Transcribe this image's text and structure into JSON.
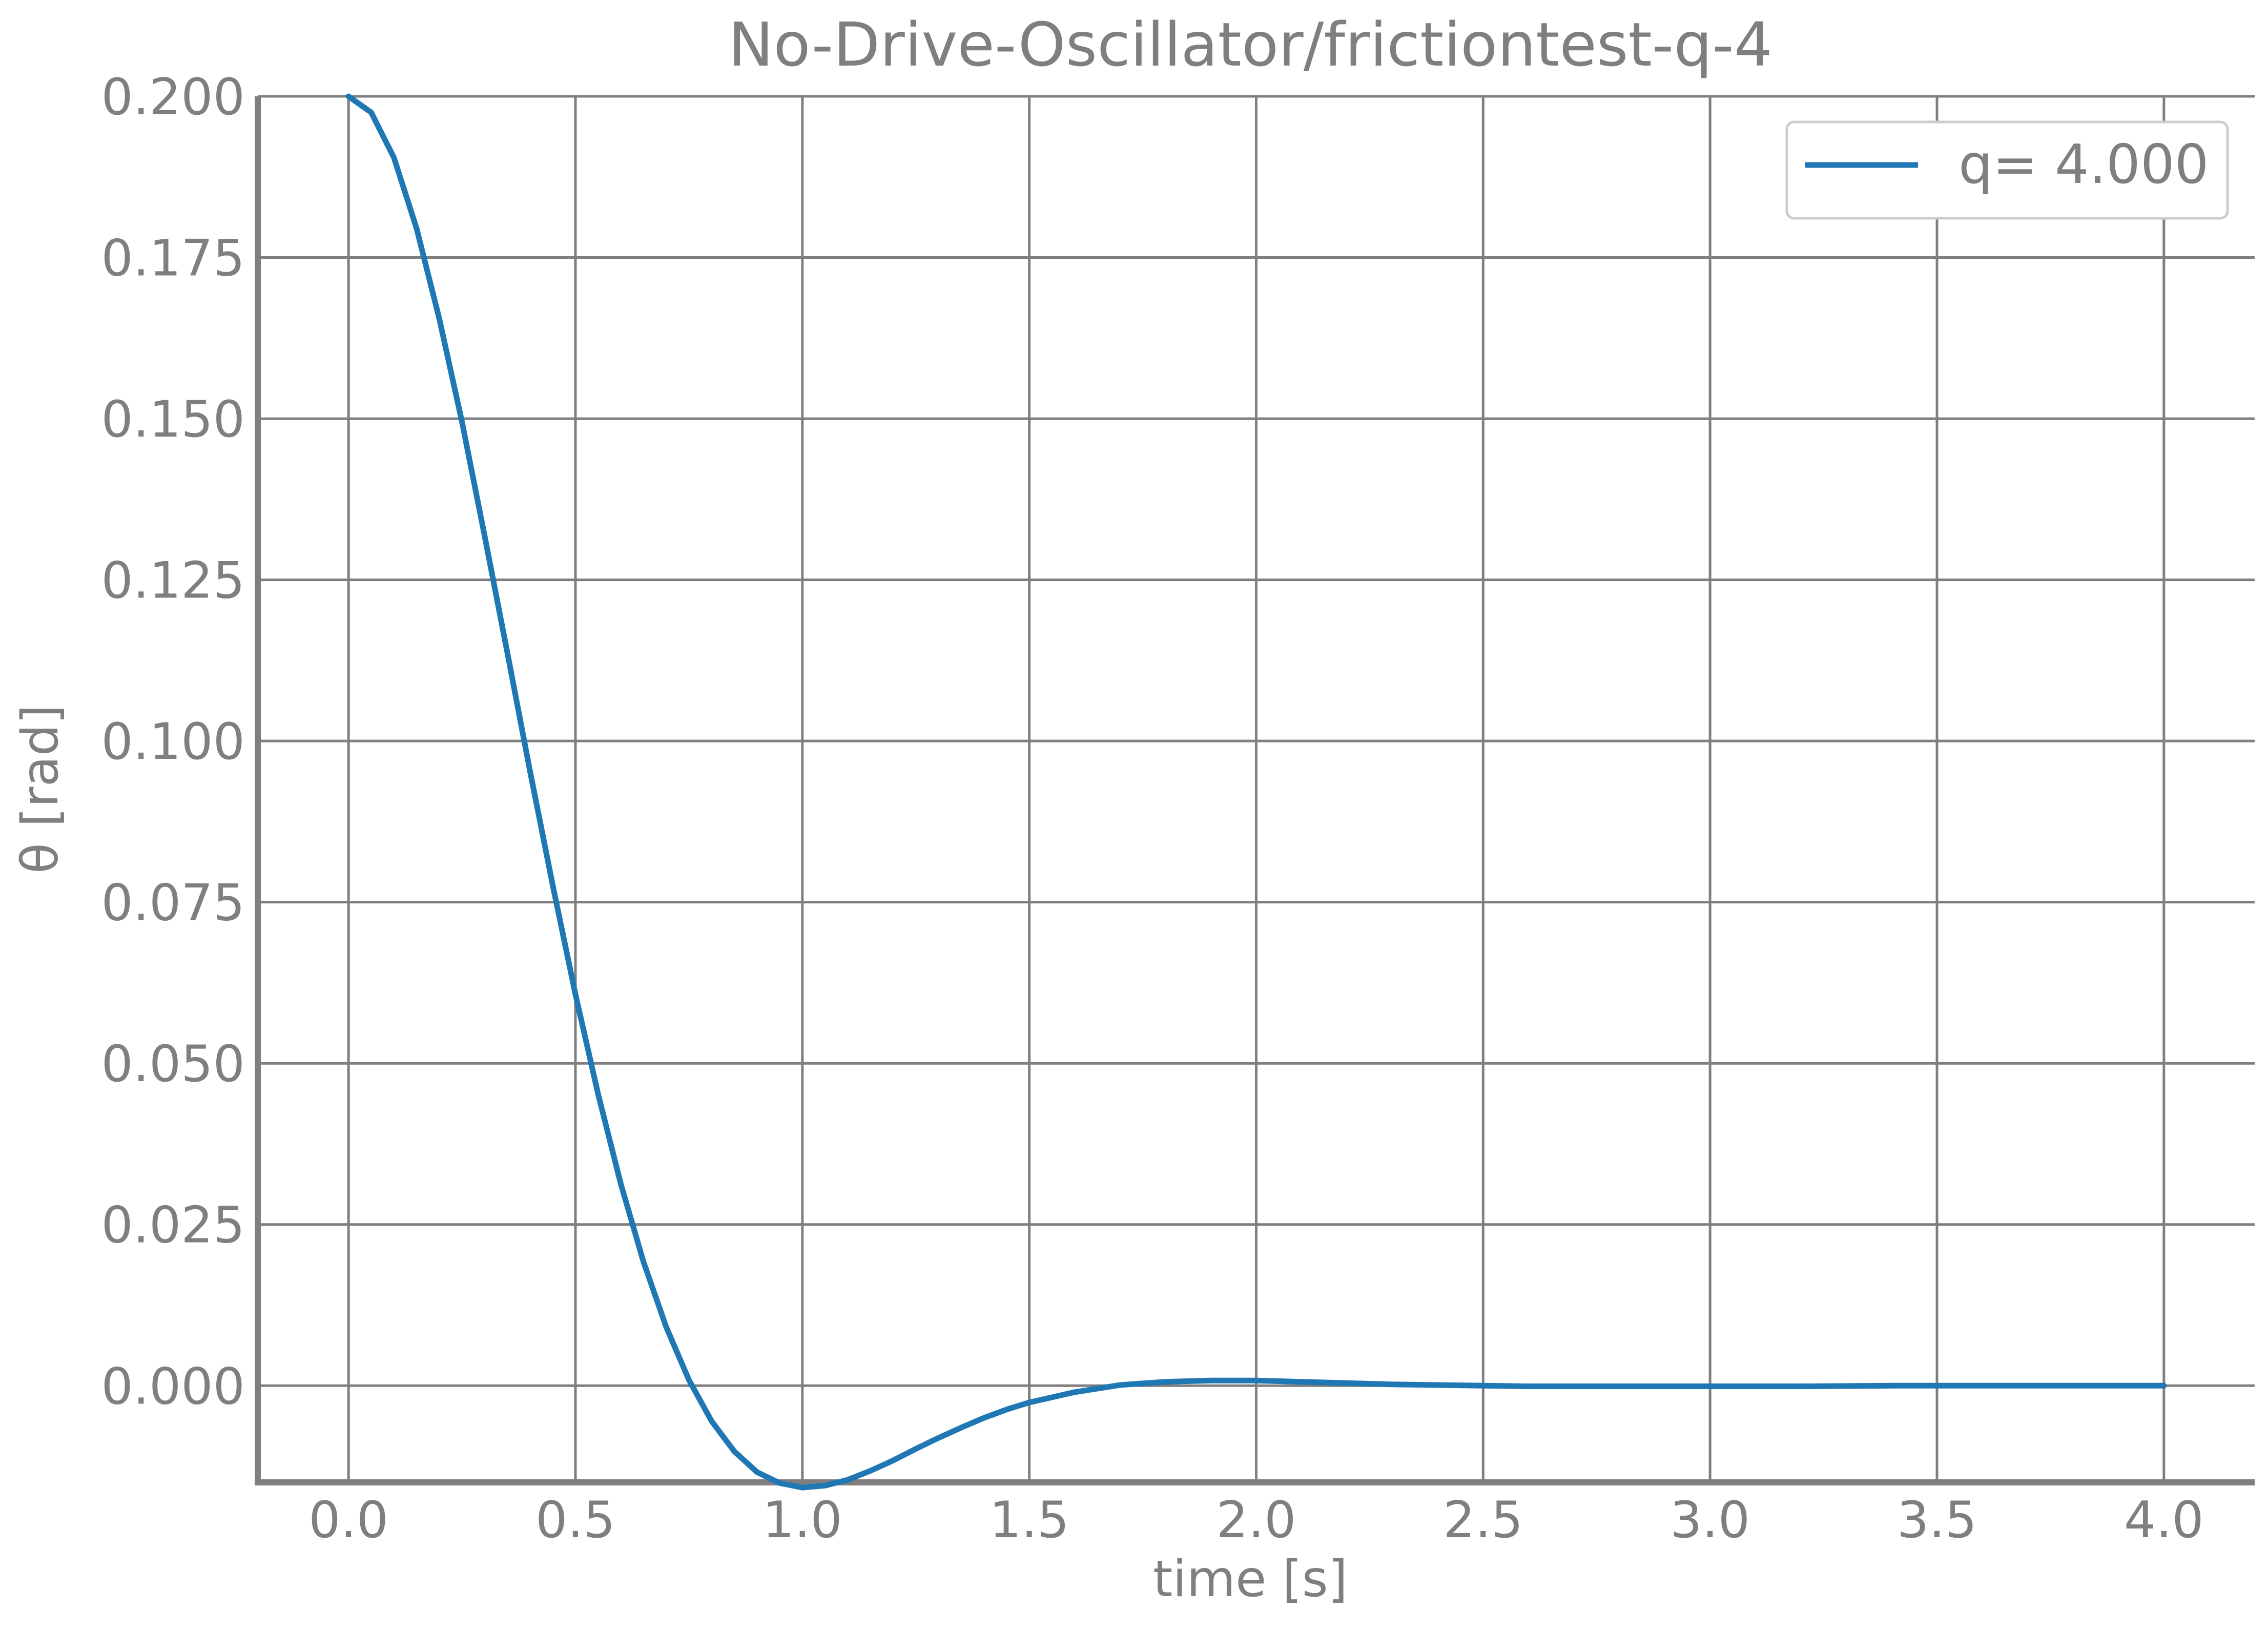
{
  "chart_data": {
    "type": "line",
    "title": "No-Drive-Oscillator/frictiontest-q-4",
    "xlabel": "time [s]",
    "ylabel": "θ [rad]",
    "xlim": [
      -0.2,
      4.2
    ],
    "ylim": [
      -0.015,
      0.2
    ],
    "x_ticks": [
      0.0,
      0.5,
      1.0,
      1.5,
      2.0,
      2.5,
      3.0,
      3.5,
      4.0
    ],
    "x_tick_labels": [
      "0.0",
      "0.5",
      "1.0",
      "1.5",
      "2.0",
      "2.5",
      "3.0",
      "3.5",
      "4.0"
    ],
    "y_ticks": [
      0.0,
      0.025,
      0.05,
      0.075,
      0.1,
      0.125,
      0.15,
      0.175,
      0.2
    ],
    "y_tick_labels": [
      "0.000",
      "0.025",
      "0.050",
      "0.075",
      "0.100",
      "0.125",
      "0.150",
      "0.175",
      "0.200"
    ],
    "grid": true,
    "legend_position": "top-right",
    "series": [
      {
        "name": "q= 4.000",
        "color": "#1f77b4",
        "x": [
          0.0,
          0.05,
          0.1,
          0.15,
          0.2,
          0.25,
          0.3,
          0.35,
          0.4,
          0.45,
          0.5,
          0.55,
          0.6,
          0.65,
          0.7,
          0.75,
          0.8,
          0.85,
          0.9,
          0.95,
          1.0,
          1.05,
          1.1,
          1.15,
          1.2,
          1.25,
          1.3,
          1.35,
          1.4,
          1.45,
          1.5,
          1.6,
          1.7,
          1.8,
          1.9,
          2.0,
          2.1,
          2.2,
          2.3,
          2.4,
          2.5,
          2.6,
          2.7,
          2.8,
          2.9,
          3.0,
          3.2,
          3.4,
          3.6,
          3.8,
          4.0
        ],
        "y": [
          0.2,
          0.1975,
          0.1905,
          0.1795,
          0.1655,
          0.1495,
          0.1318,
          0.1137,
          0.0953,
          0.0776,
          0.0607,
          0.0452,
          0.0313,
          0.0192,
          0.0091,
          0.0009,
          -0.0055,
          -0.0102,
          -0.0134,
          -0.0151,
          -0.0158,
          -0.0155,
          -0.0146,
          -0.0132,
          -0.0116,
          -0.0098,
          -0.0081,
          -0.0065,
          -0.005,
          -0.0037,
          -0.0026,
          -0.001,
          0.0001,
          0.0006,
          0.0008,
          0.0008,
          0.0006,
          0.0004,
          0.0002,
          0.0001,
          0.0,
          -0.0001,
          -0.0001,
          -0.0001,
          -0.0001,
          -0.0001,
          -0.0001,
          0.0,
          0.0,
          0.0,
          0.0
        ]
      }
    ]
  }
}
